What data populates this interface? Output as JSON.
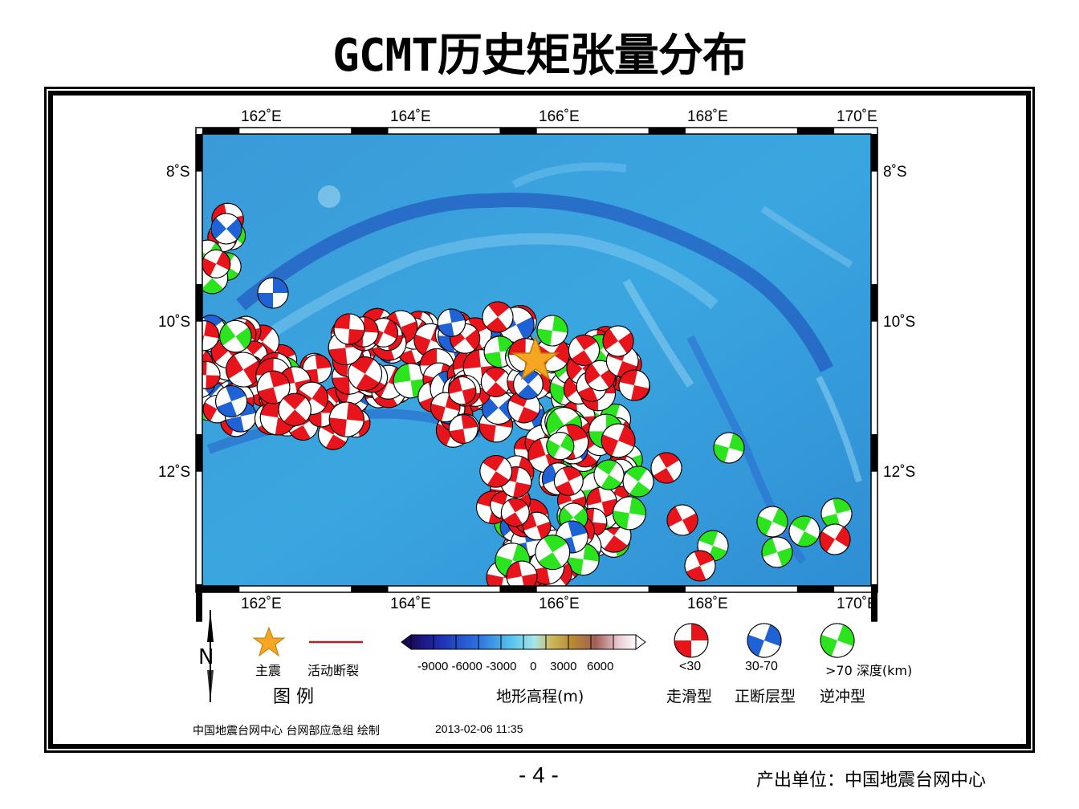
{
  "title": "GCMT历史矩张量分布",
  "map": {
    "lon_labels": [
      "162˚E",
      "164˚E",
      "166˚E",
      "168˚E",
      "170˚E"
    ],
    "lat_labels": [
      "8˚S",
      "10˚S",
      "12˚S"
    ],
    "lon_range": [
      161.0,
      170.2
    ],
    "lat_range": [
      -7.3,
      -13.4
    ],
    "colors": {
      "strike_slip": "#e8141c",
      "normal": "#1f62d6",
      "thrust": "#2ce41e",
      "mainshock": "#f5a623",
      "fault": "#b22222"
    }
  },
  "legend": {
    "title": "图    例",
    "mainshock_label": "主震",
    "fault_label": "活动断裂",
    "colorbar_ticks": "-9000 -6000 -3000    0    3000   6000",
    "colorbar_label": "地形高程(m)",
    "depth_labels": [
      "<30",
      "30-70",
      ">70 深度(km)"
    ],
    "mechanism_labels": [
      "走滑型",
      "正断层型",
      "逆冲型"
    ],
    "north_label": "N"
  },
  "footer": {
    "credit": "中国地震台网中心 台网部应急组 绘制",
    "date": "2013-02-06 11:35",
    "page_number": "- 4 -",
    "producer": "产出单位：中国地震台网中心"
  }
}
